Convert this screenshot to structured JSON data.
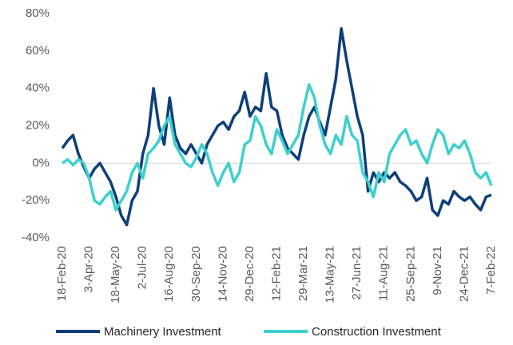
{
  "chart_data": {
    "type": "line",
    "categories": [
      "18-Feb-20",
      null,
      null,
      null,
      null,
      "3-Apr-20",
      null,
      null,
      null,
      null,
      "18-May-20",
      null,
      null,
      null,
      null,
      "2-Jul-20",
      null,
      null,
      null,
      null,
      "16-Aug-20",
      null,
      null,
      null,
      null,
      "30-Sep-20",
      null,
      null,
      null,
      null,
      "14-Nov-20",
      null,
      null,
      null,
      null,
      "29-Dec-20",
      null,
      null,
      null,
      null,
      "12-Feb-21",
      null,
      null,
      null,
      null,
      "29-Mar-21",
      null,
      null,
      null,
      null,
      "13-May-21",
      null,
      null,
      null,
      null,
      "27-Jun-21",
      null,
      null,
      null,
      null,
      "11-Aug-21",
      null,
      null,
      null,
      null,
      "25-Sep-21",
      null,
      null,
      null,
      null,
      "9-Nov-21",
      null,
      null,
      null,
      null,
      "24-Dec-21",
      null,
      null,
      null,
      null,
      "7-Feb-22"
    ],
    "series": [
      {
        "name": "Machinery Investment",
        "color": "#0e3f7a",
        "values": [
          8,
          12,
          15,
          5,
          -2,
          -8,
          -3,
          0,
          -5,
          -10,
          -18,
          -28,
          -33,
          -20,
          -15,
          5,
          15,
          40,
          20,
          10,
          35,
          15,
          8,
          5,
          10,
          5,
          0,
          10,
          15,
          20,
          22,
          18,
          25,
          28,
          38,
          25,
          30,
          28,
          48,
          30,
          28,
          15,
          8,
          5,
          2,
          15,
          25,
          30,
          22,
          15,
          30,
          45,
          72,
          55,
          40,
          25,
          15,
          -15,
          -5,
          -10,
          -5,
          -8,
          -5,
          -10,
          -12,
          -15,
          -20,
          -18,
          -8,
          -25,
          -28,
          -20,
          -22,
          -15,
          -18,
          -20,
          -18,
          -22,
          -25,
          -18,
          -17
        ]
      },
      {
        "name": "Construction Investment",
        "color": "#3ecfcf",
        "values": [
          0,
          2,
          -1,
          2,
          0,
          -8,
          -20,
          -22,
          -18,
          -15,
          -25,
          -20,
          -15,
          -5,
          0,
          -8,
          5,
          8,
          12,
          20,
          25,
          10,
          5,
          0,
          -2,
          3,
          10,
          5,
          -5,
          -12,
          -5,
          0,
          -10,
          -5,
          10,
          12,
          25,
          20,
          10,
          5,
          18,
          12,
          5,
          10,
          15,
          30,
          42,
          35,
          20,
          10,
          5,
          15,
          10,
          25,
          15,
          12,
          -5,
          -10,
          -18,
          -5,
          -10,
          5,
          10,
          15,
          18,
          10,
          12,
          5,
          0,
          10,
          18,
          15,
          5,
          10,
          8,
          12,
          5,
          -5,
          -8,
          -5,
          -12
        ]
      }
    ],
    "ylim": [
      -40,
      80
    ],
    "yticks": [
      {
        "value": -40,
        "label": "-40%"
      },
      {
        "value": -20,
        "label": "-20%"
      },
      {
        "value": 0,
        "label": "0%"
      },
      {
        "value": 20,
        "label": "20%"
      },
      {
        "value": 40,
        "label": "40%"
      },
      {
        "value": 60,
        "label": "60%"
      },
      {
        "value": 80,
        "label": "80%"
      }
    ],
    "grid": false,
    "legend": "bottom"
  }
}
